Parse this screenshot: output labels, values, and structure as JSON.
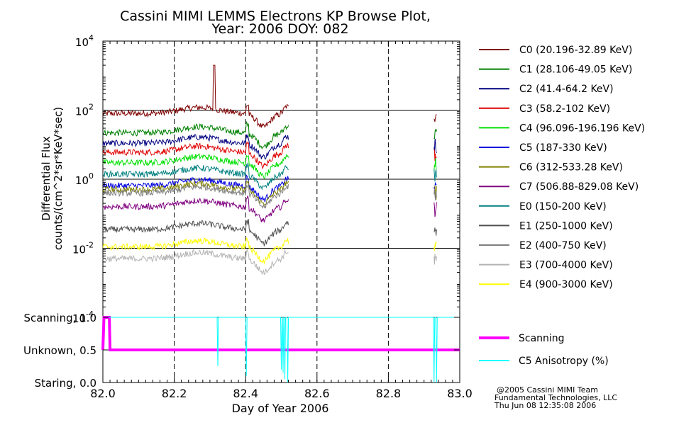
{
  "title_line1": "Cassini MIMI LEMMS Electrons KP Browse Plot,",
  "title_line2": "Year: 2006 DOY: 082",
  "credits": {
    "line1": "@2005 Cassini MIMI Team",
    "line2": "Fundamental Technologies, LLC",
    "line3": "Thu Jun 08 12:35:08 2006"
  },
  "chart_data": [
    {
      "type": "line",
      "title": "Cassini MIMI LEMMS Electrons KP Browse Plot, Year: 2006 DOY: 082",
      "ylabel_line1": "Differential Flux",
      "ylabel_line2": "counts/(cm^2*sr*KeV*sec)",
      "yscale": "log",
      "ylim": [
        0.0001,
        10000
      ],
      "xlim": [
        82.0,
        83.0
      ],
      "ytick_labels": [
        {
          "base": "10",
          "exp": "4",
          "value": 10000
        },
        {
          "base": "10",
          "exp": "2",
          "value": 100
        },
        {
          "base": "10",
          "exp": "0",
          "value": 1
        },
        {
          "base": "10",
          "exp": "-2",
          "value": 0.01
        },
        {
          "base": "10",
          "exp": "-4",
          "value": 0.0001
        }
      ],
      "vertical_dashed_lines": [
        82.2,
        82.4,
        82.6,
        82.8
      ],
      "horizontal_grid": [
        0.01,
        1,
        100
      ],
      "legend_position": "right",
      "series": [
        {
          "name": "C0 (20.196-32.89 KeV)",
          "color": "#800000",
          "level": 80,
          "spike": 2000
        },
        {
          "name": "C1 (28.106-49.05 KeV)",
          "color": "#008000",
          "level": 22
        },
        {
          "name": "C2 (41.4-64.2 KeV)",
          "color": "#000080",
          "level": 11
        },
        {
          "name": "C3 (58.2-102 KeV)",
          "color": "#e00000",
          "level": 6
        },
        {
          "name": "C4 (96.096-196.196 KeV)",
          "color": "#00e000",
          "level": 3
        },
        {
          "name": "C5 (187-330 KeV)",
          "color": "#0000e0",
          "level": 0.65
        },
        {
          "name": "C6 (312-533.28 KeV)",
          "color": "#808000",
          "level": 0.5
        },
        {
          "name": "C7 (506.88-829.08 KeV)",
          "color": "#800080",
          "level": 0.16
        },
        {
          "name": "E0 (150-200 KeV)",
          "color": "#008080",
          "level": 1.4
        },
        {
          "name": "E1 (250-1000 KeV)",
          "color": "#505050",
          "level": 0.035
        },
        {
          "name": "E2 (400-750 KeV)",
          "color": "#808080",
          "level": 0.4
        },
        {
          "name": "E3 (700-4000 KeV)",
          "color": "#b4b4b4",
          "level": 0.005
        },
        {
          "name": "E4 (900-3000 KeV)",
          "color": "#ffff00",
          "level": 0.011
        }
      ],
      "data_segments": [
        [
          82.0,
          82.52
        ],
        [
          82.928,
          82.935
        ]
      ]
    },
    {
      "type": "line",
      "xlabel": "Day of Year 2006",
      "xlim": [
        82.0,
        83.0
      ],
      "ylim": [
        0.0,
        1.0
      ],
      "xtick_labels": [
        "82.0",
        "82.2",
        "82.4",
        "82.6",
        "82.8",
        "83.0"
      ],
      "ytick_labels": [
        {
          "label": "Scanning, 1.0",
          "value": 1.0
        },
        {
          "label": "Unknown, 0.5",
          "value": 0.5
        },
        {
          "label": "Staring, 0.0",
          "value": 0.0
        }
      ],
      "vertical_dashed_lines": [
        82.2,
        82.4,
        82.6,
        82.8
      ],
      "series": [
        {
          "name": "Scanning",
          "color": "#ff00ff",
          "points": [
            [
              82.0,
              0.5
            ],
            [
              82.003,
              1.0
            ],
            [
              82.018,
              1.0
            ],
            [
              82.02,
              0.5
            ],
            [
              83.0,
              0.5
            ]
          ]
        },
        {
          "name": "C5 Anisotropy (%)",
          "color": "#00ffff",
          "base": 1.0,
          "dips": [
            [
              82.322,
              0.25
            ],
            [
              82.402,
              0.1
            ],
            [
              82.5,
              0.2
            ],
            [
              82.505,
              0.15
            ],
            [
              82.51,
              0.05
            ],
            [
              82.518,
              0.0
            ],
            [
              82.928,
              0.0
            ],
            [
              82.935,
              0.0
            ]
          ]
        }
      ]
    }
  ]
}
